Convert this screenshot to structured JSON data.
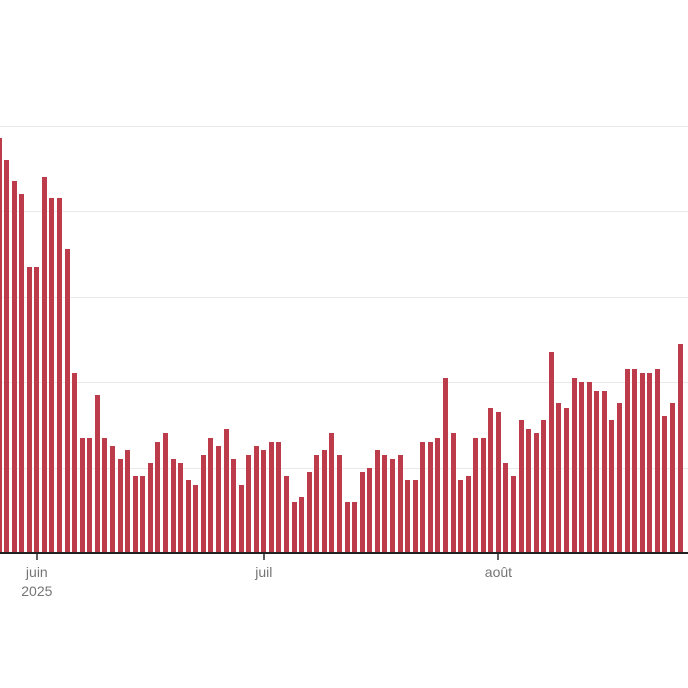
{
  "page": {
    "description": "Daily time-series bar chart with French month axis labels"
  },
  "colors": {
    "background": "#ffffff",
    "bar": "#bd3c4b",
    "gridline": "#e9e9e9",
    "axis_line": "#222222",
    "tick_mark": "#616161",
    "axis_label": "#757575"
  },
  "chart_data": {
    "type": "bar",
    "xlabel": "",
    "ylabel": "",
    "ylim": [
      0,
      100
    ],
    "grid": true,
    "grid_step": 20,
    "legend": "none",
    "values": [
      97,
      92,
      87,
      84,
      67,
      67,
      88,
      83,
      83,
      71,
      42,
      27,
      27,
      37,
      27,
      25,
      22,
      24,
      18,
      18,
      21,
      26,
      28,
      22,
      21,
      17,
      16,
      23,
      27,
      25,
      29,
      22,
      16,
      23,
      25,
      24,
      26,
      26,
      18,
      12,
      13,
      19,
      23,
      24,
      28,
      23,
      12,
      12,
      19,
      20,
      24,
      23,
      22,
      23,
      17,
      17,
      26,
      26,
      27,
      41,
      28,
      17,
      18,
      27,
      27,
      34,
      33,
      21,
      18,
      31,
      29,
      28,
      31,
      47,
      35,
      34,
      41,
      40,
      40,
      38,
      38,
      31,
      35,
      43,
      43,
      42,
      42,
      43,
      32,
      35,
      49
    ],
    "x_ticks": [
      {
        "index": 5,
        "label": "juin",
        "sublabel": "2025"
      },
      {
        "index": 35,
        "label": "juil",
        "sublabel": ""
      },
      {
        "index": 66,
        "label": "août",
        "sublabel": ""
      }
    ]
  }
}
